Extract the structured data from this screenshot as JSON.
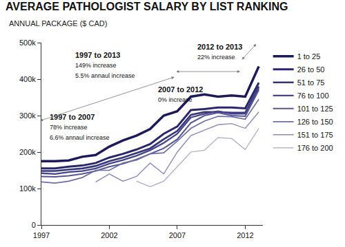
{
  "chart_data": {
    "type": "line",
    "title": "AVERAGE PATHOLOGIST SALARY BY LIST RANKING",
    "subtitle": "ANNUAL PACKAGE ($ CAD)",
    "x": [
      1997,
      1998,
      1999,
      2000,
      2001,
      2002,
      2003,
      2004,
      2005,
      2006,
      2007,
      2008,
      2009,
      2010,
      2011,
      2012,
      2013
    ],
    "series": [
      {
        "name": "1 to 25",
        "color": "#1b1b5c",
        "values": [
          175000,
          175000,
          177000,
          187000,
          192000,
          215000,
          232000,
          245000,
          263000,
          300000,
          312000,
          352000,
          358000,
          352000,
          355000,
          352000,
          435000
        ]
      },
      {
        "name": "26 to 50",
        "color": "#27276f",
        "values": [
          155000,
          155000,
          160000,
          163000,
          170000,
          185000,
          195000,
          207000,
          222000,
          250000,
          270000,
          315000,
          318000,
          322000,
          322000,
          320000,
          390000
        ]
      },
      {
        "name": "51 to 75",
        "color": "#35357c",
        "values": [
          148000,
          148000,
          152000,
          155000,
          162000,
          175000,
          185000,
          197000,
          210000,
          235000,
          258000,
          302000,
          310000,
          310000,
          308000,
          308000,
          380000
        ]
      },
      {
        "name": "76 to 100",
        "color": "#444488",
        "values": [
          142000,
          140000,
          145000,
          148000,
          155000,
          168000,
          178000,
          190000,
          205000,
          225000,
          250000,
          295000,
          305000,
          312000,
          305000,
          305000,
          375000
        ]
      },
      {
        "name": "101 to 125",
        "color": "#555596",
        "values": [
          133000,
          132000,
          135000,
          140000,
          148000,
          160000,
          168000,
          180000,
          195000,
          210000,
          235000,
          280000,
          300000,
          308000,
          300000,
          298000,
          370000
        ]
      },
      {
        "name": "126 to 150",
        "color": "#6e6ea6",
        "values": [
          118000,
          115000,
          120000,
          130000,
          150000,
          150000,
          170000,
          178000,
          195000,
          198000,
          230000,
          265000,
          285000,
          298000,
          297000,
          290000,
          345000
        ]
      },
      {
        "name": "151 to 175",
        "color": "#8a8ab8",
        "values": [
          null,
          null,
          null,
          null,
          118000,
          140000,
          120000,
          133000,
          170000,
          140000,
          200000,
          245000,
          260000,
          275000,
          278000,
          265000,
          310000
        ]
      },
      {
        "name": "176 to 200",
        "color": "#a8a8c8",
        "values": [
          null,
          null,
          null,
          null,
          null,
          null,
          null,
          120000,
          105000,
          120000,
          160000,
          200000,
          205000,
          240000,
          237000,
          207000,
          265000
        ]
      }
    ],
    "xlim": [
      1997,
      2013.3
    ],
    "xticks": [
      1997,
      2002,
      2007,
      2012
    ],
    "ylim": [
      0,
      500000
    ],
    "yticks": [
      0,
      {
        "value": 100000,
        "label": "100k"
      },
      {
        "value": 200000,
        "label": "200k"
      },
      {
        "value": 300000,
        "label": "300k"
      },
      {
        "value": 400000,
        "label": "400k"
      },
      {
        "value": 500000,
        "label": "500k"
      }
    ],
    "grid": false,
    "legend": "right",
    "annotations": [
      {
        "title": "1997 to 2013",
        "text": [
          "149% increase",
          "5.5% annaul increase"
        ]
      },
      {
        "title": "1997 to 2007",
        "text": [
          "78% increase",
          "6.6% annaul increase"
        ]
      },
      {
        "title": "2007 to 2012",
        "text": [
          "0% increase"
        ]
      },
      {
        "title": "2012 to 2013",
        "text": [
          "22% increase"
        ]
      }
    ]
  }
}
